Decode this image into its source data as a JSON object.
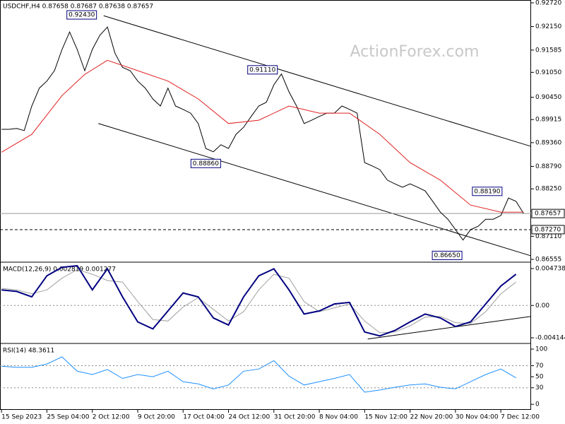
{
  "chart_data": [
    {
      "type": "line",
      "title": "USDCHF,H4 0.87658 0.87687 0.87638 0.87657",
      "watermark": "ActionForex.com",
      "xlim": [
        -0.2,
        70
      ],
      "xticks": [
        {
          "value": 0,
          "label": "15 Sep 2023"
        },
        {
          "value": 6,
          "label": "25 Sep 04:00"
        },
        {
          "value": 12,
          "label": "2 Oct 12:00"
        },
        {
          "value": 18,
          "label": "9 Oct 20:00"
        },
        {
          "value": 24,
          "label": "17 Oct 04:00"
        },
        {
          "value": 30,
          "label": "24 Oct 12:00"
        },
        {
          "value": 36,
          "label": "31 Oct 20:00"
        },
        {
          "value": 42,
          "label": "8 Nov 04:00"
        },
        {
          "value": 48,
          "label": "15 Nov 12:00"
        },
        {
          "value": 54,
          "label": "22 Nov 20:00"
        },
        {
          "value": 60,
          "label": "30 Nov 04:00"
        },
        {
          "value": 66,
          "label": "7 Dec 12:00"
        }
      ],
      "ylim": [
        0.86505,
        0.92788
      ],
      "yticks": [
        {
          "value": 0.9272,
          "label": "0.92720"
        },
        {
          "value": 0.9215,
          "label": "0.92150"
        },
        {
          "value": 0.91585,
          "label": "0.91585"
        },
        {
          "value": 0.9105,
          "label": "0.91050"
        },
        {
          "value": 0.9045,
          "label": "0.90450"
        },
        {
          "value": 0.89915,
          "label": "0.89915"
        },
        {
          "value": 0.8936,
          "label": "0.89360"
        },
        {
          "value": 0.8879,
          "label": "0.88790"
        },
        {
          "value": 0.8825,
          "label": "0.88250"
        },
        {
          "value": 0.8711,
          "label": "0.87110"
        },
        {
          "value": 0.86555,
          "label": "0.86555"
        }
      ],
      "x": [
        0,
        1,
        2,
        3,
        4,
        5,
        6,
        7,
        8,
        9,
        10,
        11,
        12,
        13,
        14,
        15,
        16,
        17,
        18,
        19,
        20,
        21,
        22,
        23,
        24,
        25,
        26,
        27,
        28,
        29,
        30,
        31,
        32,
        33,
        34,
        35,
        36,
        37,
        38,
        39,
        40,
        41,
        42,
        43,
        44,
        45,
        46,
        47,
        48,
        49,
        50,
        51,
        52,
        53,
        54,
        55,
        56,
        57,
        58,
        59,
        60,
        61,
        62,
        63,
        64,
        65,
        66,
        67,
        68,
        69
      ],
      "series": [
        {
          "color": "#000000",
          "values": [
            0.8968,
            0.8968,
            0.897,
            0.8965,
            0.9024,
            0.9067,
            0.9084,
            0.9109,
            0.916,
            0.9202,
            0.916,
            0.9109,
            0.916,
            0.9194,
            0.9214,
            0.9151,
            0.9117,
            0.9109,
            0.9084,
            0.9067,
            0.9041,
            0.9024,
            0.9067,
            0.9024,
            0.9016,
            0.9007,
            0.8982,
            0.8922,
            0.8914,
            0.8931,
            0.8922,
            0.8956,
            0.8973,
            0.8999,
            0.9024,
            0.9033,
            0.9075,
            0.9101,
            0.9058,
            0.9024,
            0.8982,
            0.899,
            0.8999,
            0.9007,
            0.9007,
            0.9024,
            0.9016,
            0.9007,
            0.8888,
            0.888,
            0.8871,
            0.8846,
            0.8837,
            0.8829,
            0.8837,
            0.8829,
            0.882,
            0.8795,
            0.8769,
            0.8752,
            0.8727,
            0.8702,
            0.8727,
            0.8735,
            0.8752,
            0.8752,
            0.8761,
            0.8803,
            0.8795,
            0.8766
          ]
        },
        {
          "color": "#e02020",
          "x": [
            0,
            4,
            8,
            11,
            14,
            18,
            22,
            26,
            30,
            34,
            38,
            42,
            46,
            50,
            54,
            58,
            62,
            66,
            69
          ],
          "values": [
            0.8913,
            0.8956,
            0.9049,
            0.91,
            0.9134,
            0.9109,
            0.9084,
            0.9041,
            0.8982,
            0.899,
            0.9024,
            0.9007,
            0.9007,
            0.8956,
            0.8888,
            0.8846,
            0.8786,
            0.8769,
            0.8769
          ]
        }
      ],
      "trendlines": [
        {
          "color": "#000000",
          "x": [
            13.5,
            70
          ],
          "values": [
            0.9241,
            0.8927
          ]
        },
        {
          "color": "#000000",
          "x": [
            12.8,
            70
          ],
          "values": [
            0.8982,
            0.8664
          ]
        }
      ],
      "hlines": [
        {
          "value": 0.87657,
          "label": "0.87657",
          "style": "solid"
        },
        {
          "value": 0.8727,
          "label": "0.87270",
          "style": "dashed"
        }
      ],
      "annotations": [
        {
          "x": 10.6,
          "value": 0.9243,
          "label": "0.92430"
        },
        {
          "x": 34.5,
          "value": 0.9111,
          "label": "0.91110"
        },
        {
          "x": 27,
          "value": 0.8886,
          "label": "0.88860"
        },
        {
          "x": 64.2,
          "value": 0.8819,
          "label": "0.88190"
        },
        {
          "x": 58.9,
          "value": 0.8665,
          "label": "0.86650"
        }
      ]
    },
    {
      "type": "line",
      "title": "MACD(12,26,9) 0.002819 0.001277",
      "ylim": [
        -0.004778,
        0.005463
      ],
      "yticks": [
        0.004738,
        {
          "value": 0,
          "label": "0.00"
        },
        -0.004144
      ],
      "levels": [
        0
      ],
      "x": [
        0,
        2,
        4,
        6,
        8,
        10,
        12,
        14,
        16,
        18,
        20,
        22,
        24,
        26,
        28,
        30,
        32,
        34,
        36,
        38,
        40,
        42,
        44,
        46,
        48,
        50,
        52,
        54,
        56,
        58,
        60,
        62,
        64,
        66,
        68
      ],
      "series": [
        {
          "color": "#a0a0a0",
          "values": [
            0.0022,
            0.002,
            0.0015,
            0.002,
            0.0035,
            0.0046,
            0.004,
            0.0032,
            0.003,
            0.0005,
            -0.0018,
            -0.002,
            -0.0002,
            0.001,
            -0.0005,
            -0.002,
            -0.0008,
            0.002,
            0.004,
            0.0035,
            0.0005,
            -0.0008,
            -0.0003,
            0.0002,
            -0.002,
            -0.0035,
            -0.0034,
            -0.0026,
            -0.0015,
            -0.0014,
            -0.0022,
            -0.0023,
            -0.0008,
            0.0015,
            0.003
          ]
        },
        {
          "color": "#000080",
          "values": [
            0.002,
            0.0018,
            0.0011,
            0.0038,
            0.0049,
            0.0051,
            0.002,
            0.0047,
            0.0011,
            -0.0021,
            -0.003,
            -0.0007,
            0.0016,
            0.0011,
            -0.0016,
            -0.0025,
            0.0011,
            0.0038,
            0.0047,
            0.002,
            -0.0011,
            -0.0007,
            0.0002,
            0.0004,
            -0.0034,
            -0.0039,
            -0.0032,
            -0.0021,
            -0.0011,
            -0.0016,
            -0.0027,
            -0.0021,
            0.0002,
            0.0025,
            0.004
          ]
        }
      ],
      "trendlines": [
        {
          "color": "#000000",
          "x": [
            48.4,
            70
          ],
          "values": [
            -0.0043,
            -0.0014
          ]
        }
      ]
    },
    {
      "type": "line",
      "title": "RSI(14) 48.3611",
      "ylim": [
        -10,
        109
      ],
      "yticks": [
        100,
        70,
        50,
        30,
        0
      ],
      "levels": [
        70,
        30
      ],
      "x": [
        0,
        2,
        4,
        6,
        8,
        10,
        12,
        14,
        16,
        18,
        20,
        22,
        24,
        26,
        28,
        30,
        32,
        34,
        36,
        38,
        40,
        42,
        44,
        46,
        48,
        50,
        52,
        54,
        56,
        58,
        60,
        62,
        64,
        66,
        68
      ],
      "series": [
        {
          "color": "#1e90ff",
          "values": [
            69,
            67,
            67,
            73,
            86,
            60,
            54,
            63,
            47,
            54,
            50,
            60,
            41,
            37,
            28,
            35,
            60,
            64,
            79,
            51,
            35,
            41,
            47,
            54,
            22,
            26,
            31,
            35,
            37,
            31,
            28,
            41,
            54,
            64,
            48
          ]
        }
      ]
    }
  ]
}
